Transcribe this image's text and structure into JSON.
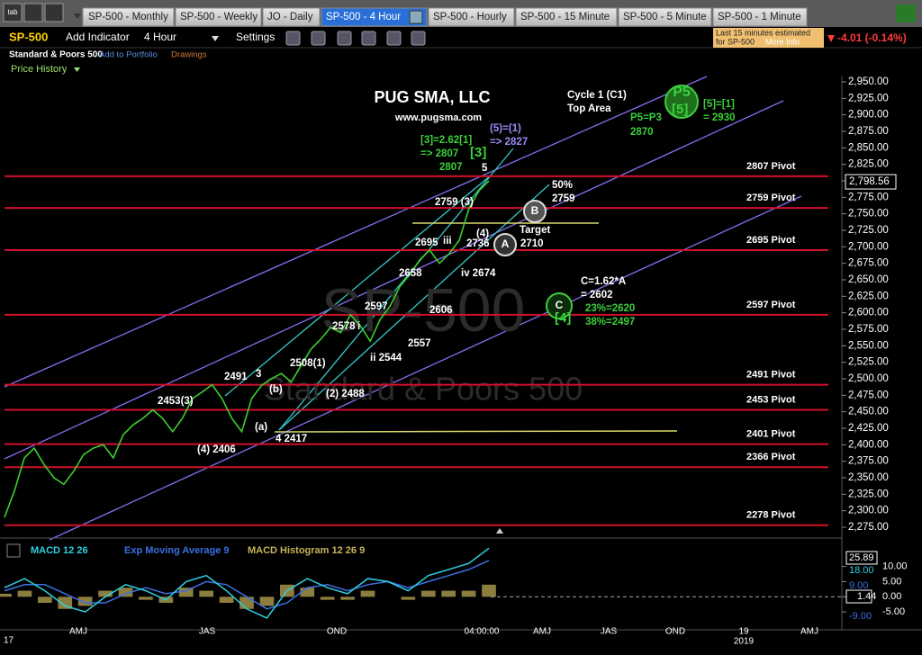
{
  "tab_icon": "tab",
  "tabs": [
    "SP-500 - Monthly",
    "SP-500 - Weekly",
    "JO - Daily",
    "SP-500 - 4 Hour",
    "SP-500 - Hourly",
    "SP-500 - 15 Minute",
    "SP-500 - 5 Minute",
    "SP-500 - 1 Minute"
  ],
  "active_tab": 3,
  "toolbar": {
    "symbol": "SP-500",
    "add_indicator": "Add Indicator",
    "interval": "4 Hour",
    "settings": "Settings",
    "notice_line1": "Last 15 minutes estimated",
    "notice_line2": "for SP-500",
    "more_info": "More Info",
    "change": "-4.01 (-0.14%)"
  },
  "subbar": {
    "name": "Standard & Poors 500",
    "add_portfolio": "Add to Portfolio",
    "drawings": "Drawings",
    "price_history": "Price History"
  },
  "chart": {
    "watermark": "SP-500",
    "watermark_sub": "Standard & Poors 500",
    "ylim": [
      2275,
      2950
    ],
    "yticks": [
      {
        "value": 2950,
        "label": "2,950.00"
      },
      {
        "value": 2925,
        "label": "2,925.00"
      },
      {
        "value": 2900,
        "label": "2,900.00"
      },
      {
        "value": 2875,
        "label": "2,875.00"
      },
      {
        "value": 2850,
        "label": "2,850.00"
      },
      {
        "value": 2825,
        "label": "2,825.00"
      },
      {
        "value": 2800,
        "label": "2,800.00"
      },
      {
        "value": 2775,
        "label": "2,775.00"
      },
      {
        "value": 2750,
        "label": "2,750.00"
      },
      {
        "value": 2725,
        "label": "2,725.00"
      },
      {
        "value": 2700,
        "label": "2,700.00"
      },
      {
        "value": 2675,
        "label": "2,675.00"
      },
      {
        "value": 2650,
        "label": "2,650.00"
      },
      {
        "value": 2625,
        "label": "2,625.00"
      },
      {
        "value": 2600,
        "label": "2,600.00"
      },
      {
        "value": 2575,
        "label": "2,575.00"
      },
      {
        "value": 2550,
        "label": "2,550.00"
      },
      {
        "value": 2525,
        "label": "2,525.00"
      },
      {
        "value": 2500,
        "label": "2,500.00"
      },
      {
        "value": 2475,
        "label": "2,475.00"
      },
      {
        "value": 2450,
        "label": "2,450.00"
      },
      {
        "value": 2425,
        "label": "2,425.00"
      },
      {
        "value": 2400,
        "label": "2,400.00"
      },
      {
        "value": 2375,
        "label": "2,375.00"
      },
      {
        "value": 2350,
        "label": "2,350.00"
      },
      {
        "value": 2325,
        "label": "2,325.00"
      },
      {
        "value": 2300,
        "label": "2,300.00"
      },
      {
        "value": 2275,
        "label": "2,275.00"
      }
    ],
    "last_price": {
      "value": 2798.56,
      "label": "2,798.56"
    },
    "pivots": [
      {
        "value": 2807,
        "label": "2807 Pivot"
      },
      {
        "value": 2759,
        "label": "2759 Pivot"
      },
      {
        "value": 2695,
        "label": "2695 Pivot"
      },
      {
        "value": 2597,
        "label": "2597 Pivot"
      },
      {
        "value": 2491,
        "label": "2491 Pivot"
      },
      {
        "value": 2453,
        "label": "2453 Pivot"
      },
      {
        "value": 2401,
        "label": "2401 Pivot"
      },
      {
        "value": 2366,
        "label": "2366 Pivot"
      },
      {
        "value": 2278,
        "label": "2278 Pivot"
      }
    ],
    "pivot_color": "#d0102a",
    "price": [
      2290,
      2330,
      2380,
      2395,
      2370,
      2350,
      2340,
      2360,
      2385,
      2395,
      2400,
      2380,
      2415,
      2430,
      2440,
      2453,
      2440,
      2420,
      2440,
      2470,
      2480,
      2491,
      2470,
      2440,
      2420,
      2470,
      2490,
      2500,
      2508,
      2495,
      2520,
      2545,
      2560,
      2578,
      2570,
      2597,
      2580,
      2557,
      2590,
      2610,
      2640,
      2658,
      2680,
      2695,
      2675,
      2690,
      2710,
      2759,
      2785,
      2800
    ],
    "price_color": "#3ccf2f",
    "title": "PUG SMA, LLC",
    "website": "www.pugsma.com",
    "annotations_white": [
      "Cycle 1 (C1)",
      "Top Area",
      "5",
      "2759 (3)",
      "50%",
      "2759",
      "(4)",
      "Target",
      "2710",
      "iii",
      "2695",
      "2736",
      "iv 2674",
      "2658",
      "C=1.62*A",
      "= 2602",
      "2597",
      "2606",
      "2578",
      "i",
      "2557",
      "ii 2544",
      "2508(1)",
      "2491",
      "3",
      "(b)",
      "(2) 2488",
      "2453(3)",
      "(a)",
      "4 2417",
      "(4) 2406"
    ],
    "annotations_green": [
      "[3]=2.62[1]",
      "=> 2807",
      "[3]",
      "2807",
      "[5]=[1]",
      "= 2930",
      "P5=P3",
      "2870",
      "[4]",
      "23%=2620",
      "38%=2497",
      "[5]"
    ],
    "annotations_blue": [
      "(5)=(1)",
      "=> 2827"
    ],
    "circles": [
      "P5",
      "B",
      "A",
      "C"
    ],
    "xlabels": [
      "AMJ",
      "JAS",
      "OND",
      "04:00:00",
      "AMJ",
      "JAS",
      "OND",
      "19",
      "AMJ"
    ],
    "year_labels": [
      "17",
      "2019"
    ]
  },
  "macd": {
    "legend": [
      "MACD 12 26",
      "Exp Moving Average 9",
      "MACD Histogram 12 26 9"
    ],
    "ylim": [
      -10,
      17
    ],
    "yticks": [
      {
        "value": 10,
        "label": "10.00"
      },
      {
        "value": 5,
        "label": "5.00"
      },
      {
        "value": 0,
        "label": "0.00"
      },
      {
        "value": -5,
        "label": "-5.00"
      }
    ],
    "tags": [
      "25.89",
      "18.00",
      "9.00",
      "1.44",
      "-9.00"
    ],
    "macd": [
      3,
      6,
      2,
      -3,
      -5,
      0,
      4,
      2,
      -1,
      5,
      7,
      2,
      -4,
      -7,
      2,
      6,
      3,
      1,
      6,
      5,
      2,
      7,
      9,
      11,
      16
    ],
    "signal": [
      2,
      4,
      4,
      1,
      -2,
      -2,
      1,
      3,
      1,
      2,
      5,
      4,
      0,
      -4,
      -2,
      3,
      4,
      2,
      4,
      5,
      3,
      5,
      7,
      9,
      12
    ],
    "histogram": [
      1,
      2,
      -2,
      -4,
      -3,
      2,
      3,
      -1,
      -2,
      3,
      2,
      -2,
      -4,
      -3,
      4,
      3,
      -1,
      -1,
      2,
      0,
      -1,
      2,
      2,
      2,
      4
    ],
    "macd_color": "#2fd0e0",
    "signal_color": "#3b6fe0",
    "hist_color": "#c8b45a"
  }
}
